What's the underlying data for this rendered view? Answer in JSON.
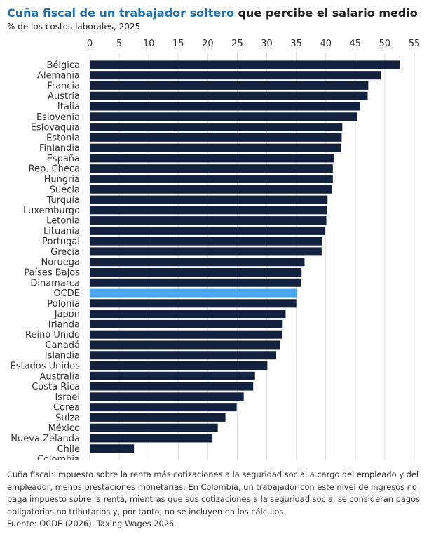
{
  "title": {
    "highlight": "Cuña fiscal de un trabajador soltero",
    "rest": " que percibe el salario medio"
  },
  "subtitle": "% de los costos laborales, 2025",
  "colors": {
    "bar": "#13213f",
    "highlight_bar": "#4aa8f5",
    "title_accent": "#1f6fb5",
    "grid": "#dddddd"
  },
  "chart_data": {
    "type": "bar",
    "orientation": "horizontal",
    "title": "Cuña fiscal de un trabajador soltero que percibe el salario medio",
    "subtitle": "% de los costos laborales, 2025",
    "xlim": [
      0,
      55
    ],
    "xticks": [
      0,
      5,
      10,
      15,
      20,
      25,
      30,
      35,
      40,
      45,
      50,
      55
    ],
    "grid": true,
    "highlight_category": "OCDE",
    "categories": [
      "Bélgica",
      "Alemania",
      "Francia",
      "Austria",
      "Italia",
      "Eslovenia",
      "Eslovaquia",
      "Estonia",
      "Finlandia",
      "España",
      "Rep. Checa",
      "Hungría",
      "Suecia",
      "Turquía",
      "Luxemburgo",
      "Letonia",
      "Lituania",
      "Portugal",
      "Grecia",
      "Noruega",
      "Países Bajos",
      "Dinamarca",
      "OCDE",
      "Polonia",
      "Japón",
      "Irlanda",
      "Reino Unido",
      "Canadá",
      "Islandia",
      "Estados Unidos",
      "Australia",
      "Costa Rica",
      "Israel",
      "Corea",
      "Suiza",
      "México",
      "Nueva Zelanda",
      "Chile",
      "Colombia"
    ],
    "values": [
      52.6,
      49.3,
      47.2,
      47.1,
      45.8,
      45.3,
      42.8,
      42.7,
      42.6,
      41.4,
      41.2,
      41.2,
      41.1,
      40.3,
      40.2,
      40.1,
      39.9,
      39.4,
      39.3,
      36.4,
      35.9,
      35.8,
      35.1,
      35.0,
      33.2,
      32.7,
      32.6,
      32.2,
      31.6,
      30.1,
      28.0,
      27.7,
      26.1,
      24.9,
      23.0,
      21.7,
      20.8,
      7.5,
      0
    ]
  },
  "notes": [
    "Cuña fiscal: impuesto sobre la renta más cotizaciones a la seguridad social a cargo del empleado y del empleador, menos prestaciones monetarias. En Colombia, un trabajador con este nivel de ingresos no paga impuesto sobre la renta, mientras que sus cotizaciones a la seguridad social se consideran pagos obligatorios no tributarios y, por tanto, no se incluyen en los cálculos.",
    "Fuente: OCDE (2026), Taxing Wages 2026."
  ]
}
